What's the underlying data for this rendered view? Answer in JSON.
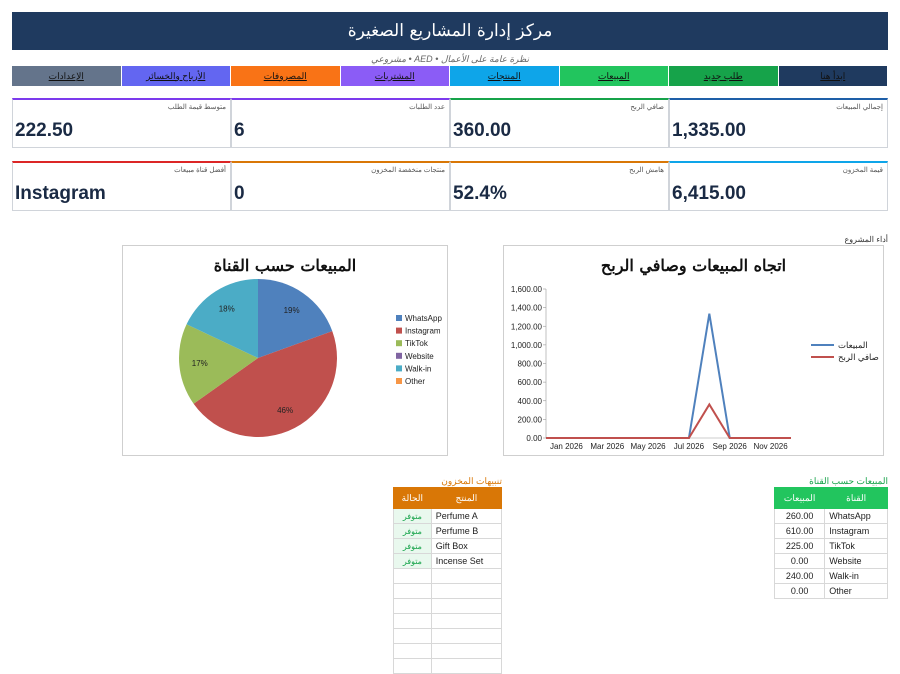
{
  "header": {
    "title": "مركز إدارة المشاريع الصغيرة",
    "subtitle": "نظرة عامة على الأعمال  •  AED  •  مشروعي"
  },
  "nav": [
    {
      "label": "ابدأ هنا",
      "color": "#1f3a5f"
    },
    {
      "label": "طلب جديد",
      "color": "#16a34a"
    },
    {
      "label": "المبيعات",
      "color": "#22c55e"
    },
    {
      "label": "المنتجات",
      "color": "#0ea5e9"
    },
    {
      "label": "المشتريات",
      "color": "#8b5cf6"
    },
    {
      "label": "المصروفات",
      "color": "#f97316"
    },
    {
      "label": "الأرباح والخسائر",
      "color": "#6366f1"
    },
    {
      "label": "الإعدادات",
      "color": "#64748b"
    }
  ],
  "kpis_row1": [
    {
      "label": "إجمالي المبيعات",
      "value": "1,335.00",
      "color": "#1e5fa8"
    },
    {
      "label": "صافي الربح",
      "value": "360.00",
      "color": "#16a34a"
    },
    {
      "label": "عدد الطلبات",
      "value": "6",
      "color": "#7c3aed"
    },
    {
      "label": "متوسط قيمة الطلب",
      "value": "222.50",
      "color": "#7c3aed"
    }
  ],
  "kpis_row2": [
    {
      "label": "قيمة المخزون",
      "value": "6,415.00",
      "color": "#0ea5e9"
    },
    {
      "label": "هامش الربح",
      "value": "52.4%",
      "color": "#d97706"
    },
    {
      "label": "منتجات منخفضة المخزون",
      "value": "0",
      "color": "#d97706"
    },
    {
      "label": "أفضل قناة مبيعات",
      "value": "Instagram",
      "color": "#dc2626"
    }
  ],
  "performance_label": "أداء المشروع",
  "chart_data": [
    {
      "type": "pie",
      "title": "المبيعات حسب القناة",
      "categories": [
        "WhatsApp",
        "Instagram",
        "TikTok",
        "Website",
        "Walk-in",
        "Other"
      ],
      "values": [
        260,
        610,
        225,
        0,
        240,
        0
      ],
      "colors": [
        "#4f81bd",
        "#c0504d",
        "#9bbb59",
        "#8064a2",
        "#4bacc6",
        "#f79646"
      ],
      "data_labels": [
        "19%",
        "46%",
        "17%",
        "",
        "18%",
        ""
      ],
      "legend": "right"
    },
    {
      "type": "line",
      "title": "اتجاه المبيعات وصافي الربح",
      "x": [
        "Dec 2025",
        "Jan 2026",
        "Feb 2026",
        "Mar 2026",
        "Apr 2026",
        "May 2026",
        "Jun 2026",
        "Jul 2026",
        "Aug 2026",
        "Sep 2026",
        "Oct 2026",
        "Nov 2026",
        "Dec 2026"
      ],
      "x_tick_labels": [
        "Jan 2026",
        "Mar 2026",
        "May 2026",
        "Jul 2026",
        "Sep 2026",
        "Nov 2026"
      ],
      "y_tick_labels": [
        "0.00",
        "200.00",
        "400.00",
        "600.00",
        "800.00",
        "1,000.00",
        "1,200.00",
        "1,400.00",
        "1,600.00"
      ],
      "ylim": [
        0,
        1600
      ],
      "series": [
        {
          "name": "المبيعات",
          "color": "#4f81bd",
          "values": [
            0,
            0,
            0,
            0,
            0,
            0,
            0,
            0,
            1335,
            0,
            0,
            0,
            0
          ]
        },
        {
          "name": "صافي الربح",
          "color": "#c0504d",
          "values": [
            0,
            0,
            0,
            0,
            0,
            0,
            0,
            0,
            360,
            0,
            0,
            0,
            0
          ]
        }
      ],
      "legend": "right"
    }
  ],
  "stock_alerts": {
    "title": "تنبيهات المخزون",
    "headers": [
      "المنتج",
      "الحالة"
    ],
    "rows": [
      {
        "product": "Perfume A",
        "status": "متوفر"
      },
      {
        "product": "Perfume B",
        "status": "متوفر"
      },
      {
        "product": "Gift Box",
        "status": "متوفر"
      },
      {
        "product": "Incense Set",
        "status": "متوفر"
      }
    ],
    "empty_rows": 7
  },
  "sales_by_channel": {
    "title": "المبيعات حسب القناة",
    "headers": [
      "القناة",
      "المبيعات"
    ],
    "rows": [
      {
        "channel": "WhatsApp",
        "sales": "260.00"
      },
      {
        "channel": "Instagram",
        "sales": "610.00"
      },
      {
        "channel": "TikTok",
        "sales": "225.00"
      },
      {
        "channel": "Website",
        "sales": "0.00"
      },
      {
        "channel": "Walk-in",
        "sales": "240.00"
      },
      {
        "channel": "Other",
        "sales": "0.00"
      }
    ]
  }
}
